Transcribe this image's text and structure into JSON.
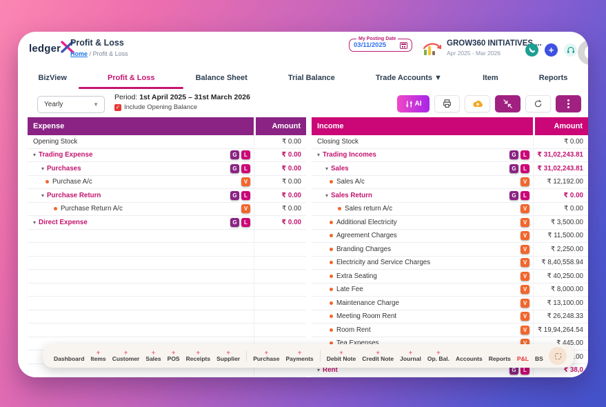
{
  "header": {
    "logo_text": "ledger",
    "logo_x": "X",
    "page_title": "Profit & Loss",
    "breadcrumb": {
      "home": "Home",
      "separator": "/",
      "current": "Profit & Loss"
    },
    "posting_date": {
      "label": "My Posting Date",
      "value": "03/11/2025",
      "icon": "calendar-icon"
    },
    "company": {
      "name": "GROW360 INITIATIVES ...",
      "period": "Apr 2025 - Mar 2026",
      "logo": "company-logo"
    },
    "quick_icons": [
      "phone-icon",
      "add-icon",
      "support-headset-icon"
    ]
  },
  "tabs": [
    {
      "label": "BizView",
      "active": false
    },
    {
      "label": "Profit & Loss",
      "active": true
    },
    {
      "label": "Balance Sheet",
      "active": false
    },
    {
      "label": "Trial Balance",
      "active": false
    },
    {
      "label": "Trade Accounts ▼",
      "active": false
    },
    {
      "label": "Item",
      "active": false
    },
    {
      "label": "Reports",
      "active": false
    }
  ],
  "controls": {
    "period_select_value": "Yearly",
    "period_prefix": "Period:",
    "period_value": "1st April 2025 – 31st March 2026",
    "include_opening_balance": {
      "label": "Include Opening Balance",
      "checked": true
    },
    "toolbar": {
      "ai_label": "AI",
      "icons": [
        "ai-sparkle-icon",
        "printer-icon",
        "cloud-upload-icon",
        "collapse-icon",
        "refresh-icon",
        "kebab-menu-icon"
      ]
    }
  },
  "expense_table": {
    "title": "Expense",
    "amount_header": "Amount",
    "rows": [
      {
        "label": "Opening Stock",
        "type": "plain",
        "indent": 0,
        "badges": [],
        "amount": "₹ 0.00"
      },
      {
        "label": "Trading Expense",
        "type": "group",
        "indent": 0,
        "badges": [
          "G",
          "L"
        ],
        "amount": "₹ 0.00"
      },
      {
        "label": "Purchases",
        "type": "group",
        "indent": 1,
        "badges": [
          "G",
          "L"
        ],
        "amount": "₹ 0.00"
      },
      {
        "label": "Purchase A/c",
        "type": "leaf",
        "indent": 1,
        "badges": [
          "V"
        ],
        "amount": "₹ 0.00"
      },
      {
        "label": "Purchase Return",
        "type": "group",
        "indent": 1,
        "badges": [
          "G",
          "L"
        ],
        "amount": "₹ 0.00"
      },
      {
        "label": "Purchase Return A/c",
        "type": "leaf",
        "indent": 2,
        "badges": [
          "V"
        ],
        "amount": "₹ 0.00"
      },
      {
        "label": "Direct Expense",
        "type": "group",
        "indent": 0,
        "badges": [
          "G",
          "L"
        ],
        "amount": "₹ 0.00"
      }
    ],
    "empty_rows": 11
  },
  "income_table": {
    "title": "Income",
    "amount_header": "Amount",
    "rows": [
      {
        "label": "Closing Stock",
        "type": "plain",
        "indent": 0,
        "badges": [],
        "amount": "₹ 0.00"
      },
      {
        "label": "Trading Incomes",
        "type": "group",
        "indent": 0,
        "badges": [
          "G",
          "L"
        ],
        "amount": "₹ 31,02,243.81"
      },
      {
        "label": "Sales",
        "type": "group",
        "indent": 1,
        "badges": [
          "G",
          "L"
        ],
        "amount": "₹ 31,02,243.81"
      },
      {
        "label": "Sales A/c",
        "type": "leaf",
        "indent": 1,
        "badges": [
          "V"
        ],
        "amount": "₹ 12,192.00"
      },
      {
        "label": "Sales Return",
        "type": "group",
        "indent": 1,
        "badges": [
          "G",
          "L"
        ],
        "amount": "₹ 0.00"
      },
      {
        "label": "Sales return A/c",
        "type": "leaf",
        "indent": 2,
        "badges": [
          "V"
        ],
        "amount": "₹ 0.00"
      },
      {
        "label": "Additional Electricity",
        "type": "leaf",
        "indent": 1,
        "badges": [
          "V"
        ],
        "amount": "₹ 3,500.00"
      },
      {
        "label": "Agreement Charges",
        "type": "leaf",
        "indent": 1,
        "badges": [
          "V"
        ],
        "amount": "₹ 11,500.00"
      },
      {
        "label": "Branding Charges",
        "type": "leaf",
        "indent": 1,
        "badges": [
          "V"
        ],
        "amount": "₹ 2,250.00"
      },
      {
        "label": "Electricity and Service Charges",
        "type": "leaf",
        "indent": 1,
        "badges": [
          "V"
        ],
        "amount": "₹ 8,40,558.94"
      },
      {
        "label": "Extra Seating",
        "type": "leaf",
        "indent": 1,
        "badges": [
          "V"
        ],
        "amount": "₹ 40,250.00"
      },
      {
        "label": "Late Fee",
        "type": "leaf",
        "indent": 1,
        "badges": [
          "V"
        ],
        "amount": "₹ 8,000.00"
      },
      {
        "label": "Maintenance Charge",
        "type": "leaf",
        "indent": 1,
        "badges": [
          "V"
        ],
        "amount": "₹ 13,100.00"
      },
      {
        "label": "Meeting Room Rent",
        "type": "leaf",
        "indent": 1,
        "badges": [
          "V"
        ],
        "amount": "₹ 26,248.33"
      },
      {
        "label": "Room Rent",
        "type": "leaf",
        "indent": 1,
        "badges": [
          "V"
        ],
        "amount": "₹ 19,94,264.54"
      },
      {
        "label": "Tea Expenses",
        "type": "leaf",
        "indent": 1,
        "badges": [
          "V"
        ],
        "amount": "₹ 445.00"
      },
      {
        "label": "",
        "type": "leaf",
        "indent": 1,
        "badges": [
          "V"
        ],
        "amount": "₹ 350.00"
      },
      {
        "label": "Rent",
        "type": "group",
        "indent": 0,
        "badges": [
          "G",
          "L"
        ],
        "amount": "₹ 38,0"
      }
    ],
    "empty_rows": 0
  },
  "bottom_nav": {
    "plus_glyph": "+",
    "items": [
      {
        "label": "Dashboard",
        "plus": false
      },
      {
        "label": "Items",
        "plus": true
      },
      {
        "label": "Customer",
        "plus": true
      },
      {
        "label": "Sales",
        "plus": true
      },
      {
        "label": "POS",
        "plus": true
      },
      {
        "label": "Receipts",
        "plus": true
      },
      {
        "label": "Supplier",
        "plus": true
      },
      {
        "label": "Purchase",
        "plus": true,
        "divider_before": true
      },
      {
        "label": "Payments",
        "plus": true
      },
      {
        "label": "Debit Note",
        "plus": true,
        "divider_before": true
      },
      {
        "label": "Credit Note",
        "plus": true
      },
      {
        "label": "Journal",
        "plus": true
      },
      {
        "label": "Op. Bal.",
        "plus": true
      },
      {
        "label": "Accounts",
        "plus": false
      },
      {
        "label": "Reports",
        "plus": false
      },
      {
        "label": "P&L",
        "plus": false,
        "active": true
      },
      {
        "label": "BS",
        "plus": false
      }
    ]
  },
  "colors": {
    "expense_header": "#8a2383",
    "income_header": "#cb0677",
    "group_text": "#c2156f",
    "badge_g": "#8a2383",
    "badge_l": "#cb0677",
    "badge_v": "#f2662d",
    "nav_active": "#e8312f",
    "date_value_blue": "#2b6ef0"
  }
}
